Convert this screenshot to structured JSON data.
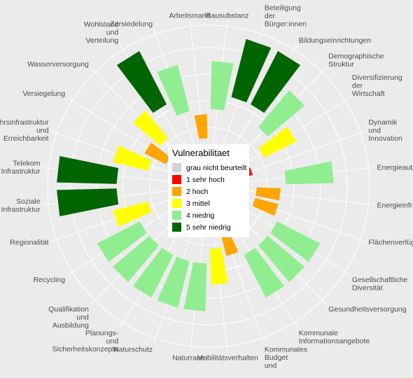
{
  "chart_data": {
    "type": "bar",
    "coordinate_system": "polar",
    "title": "",
    "xlabel": "",
    "ylabel": "",
    "ylim": [
      0,
      5
    ],
    "grid": true,
    "legend_position": "center",
    "categories": [
      "Bausubstanz",
      "Beteiligung der Bürger:innen",
      "Bildungseinrichtungen",
      "Demographische Struktur",
      "Diversifizierung der Wirtschaft",
      "Dynamik und Innovation",
      "Energieautarkie",
      "Energieinfrastruktur",
      "Flächenverfügbarkeit",
      "Gesellschaftliche Diversität",
      "Gesundheitsversorgung",
      "Kommunale Informationsangebote",
      "Kommunales Budget und",
      "Mobilitätsverhalten",
      "Naturraum",
      "Naturschutz",
      "Planungs- und Sicherheitskonzepte",
      "Qualifikation und Ausbildung",
      "Recycling",
      "Regionalität",
      "Soziale Infrastruktur",
      "Telekom Infrastruktur",
      "Verkehrsinfrastruktur und Erreichbarkeit",
      "Versiegelung",
      "Wasserversorgung",
      "Wohlstand und Verteilung",
      "Zersiedelung",
      "Arbeitsmarkt"
    ],
    "label_lines": [
      [
        "Bausubstanz"
      ],
      [
        "Beteiligung",
        "der",
        "Bürger:innen"
      ],
      [
        "Bildungseinrichtungen"
      ],
      [
        "Demographische",
        "Struktur"
      ],
      [
        "Diversifizierung",
        "der",
        "Wirtschaft"
      ],
      [
        "Dynamik",
        "und",
        "Innovation"
      ],
      [
        "Energieautarkie"
      ],
      [
        "Energieinfrastruktur"
      ],
      [
        "Flächenverfügbarkeit"
      ],
      [
        "Gesellschaftliche",
        "Diversität"
      ],
      [
        "Gesundheitsversorgung"
      ],
      [
        "Kommunale",
        "Informationsangebote"
      ],
      [
        "Kommunales",
        "Budget",
        "und"
      ],
      [
        "Mobilitätsverhalten"
      ],
      [
        "Naturraum"
      ],
      [
        "Naturschutz"
      ],
      [
        "Planungs-",
        "und",
        "Sicherheitskonzepte"
      ],
      [
        "Qualifikation",
        "und",
        "Ausbildung"
      ],
      [
        "Recycling"
      ],
      [
        "Regionalität"
      ],
      [
        "Soziale",
        "Infrastruktur"
      ],
      [
        "Telekom",
        "Infrastruktur"
      ],
      [
        "Verkehrsinfrastruktur",
        "und",
        "Erreichbarkeit"
      ],
      [
        "Versiegelung"
      ],
      [
        "Wasserversorgung"
      ],
      [
        "Wohlstand",
        "und",
        "Verteilung"
      ],
      [
        "Zersiedelung"
      ],
      [
        "Arbeitsmarkt"
      ]
    ],
    "values": [
      4,
      5,
      5,
      4,
      3,
      1,
      4,
      2,
      2,
      4,
      4,
      4,
      2,
      3,
      4,
      4,
      4,
      4,
      4,
      3,
      5,
      5,
      3,
      2,
      3,
      5,
      4,
      2
    ],
    "legend": {
      "title": "Vulnerabilitaet",
      "entries": [
        {
          "label": "grau nicht beurteilt",
          "color": "#d3d3d3"
        },
        {
          "label": "1 sehr hoch",
          "color": "#ff0000"
        },
        {
          "label": "2 hoch",
          "color": "#ffa500"
        },
        {
          "label": "3 mittel",
          "color": "#ffff00"
        },
        {
          "label": "4 niedrig",
          "color": "#90ee90"
        },
        {
          "label": "5 sehr niedrig",
          "color": "#006400"
        }
      ]
    },
    "colors": {
      "0": "#d3d3d3",
      "1": "#ff0000",
      "2": "#ffa500",
      "3": "#ffff00",
      "4": "#90ee90",
      "5": "#006400"
    },
    "panel_background": "#ebebeb",
    "grid_color": "#ffffff"
  }
}
